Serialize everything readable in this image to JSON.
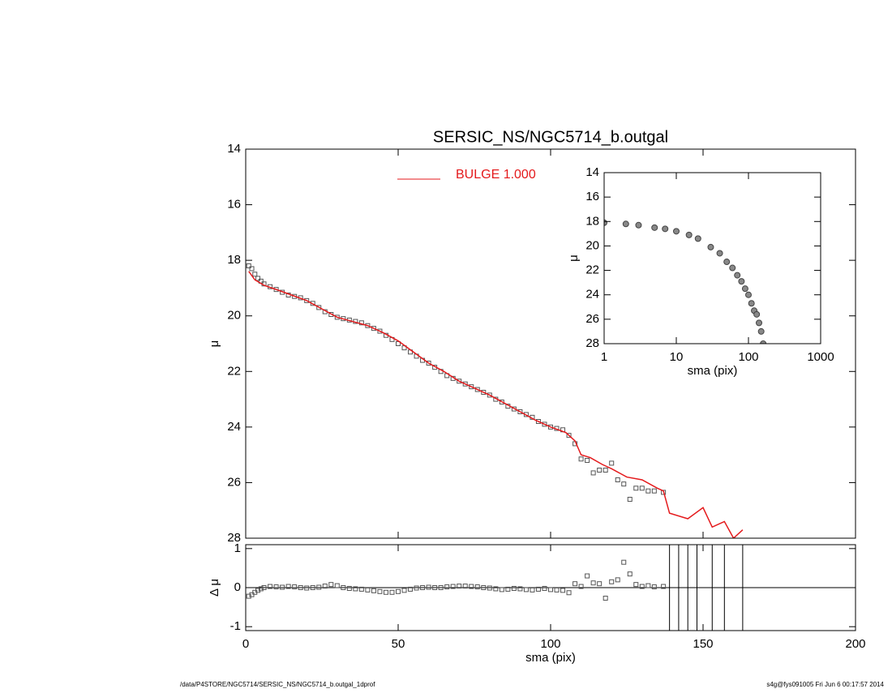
{
  "chart_data": [
    {
      "type": "scatter",
      "title": "SERSIC_NS/NGC5714_b.outgal",
      "ylabel": "μ",
      "xlim": [
        0,
        200
      ],
      "ylim": [
        28,
        14
      ],
      "yticks": [
        14,
        16,
        18,
        20,
        22,
        24,
        26,
        28
      ],
      "points": {
        "color": "#555555",
        "x": [
          1,
          2,
          3,
          4,
          5,
          6,
          8,
          10,
          12,
          14,
          16,
          18,
          20,
          22,
          24,
          26,
          28,
          30,
          32,
          34,
          36,
          38,
          40,
          42,
          44,
          46,
          48,
          50,
          52,
          54,
          56,
          58,
          60,
          62,
          64,
          66,
          68,
          70,
          72,
          74,
          76,
          78,
          80,
          82,
          84,
          86,
          88,
          90,
          92,
          94,
          96,
          98,
          100,
          102,
          104,
          106,
          108,
          110,
          112,
          114,
          116,
          118,
          120,
          122,
          124,
          126,
          128,
          130,
          132,
          134,
          137
        ],
        "values": [
          18.2,
          18.3,
          18.5,
          18.65,
          18.75,
          18.85,
          18.95,
          19.05,
          19.15,
          19.25,
          19.3,
          19.35,
          19.45,
          19.55,
          19.7,
          19.85,
          19.95,
          20.05,
          20.1,
          20.15,
          20.2,
          20.25,
          20.35,
          20.45,
          20.55,
          20.7,
          20.85,
          21.0,
          21.15,
          21.3,
          21.45,
          21.6,
          21.7,
          21.85,
          22.0,
          22.15,
          22.25,
          22.35,
          22.45,
          22.55,
          22.65,
          22.75,
          22.85,
          23.0,
          23.1,
          23.25,
          23.35,
          23.45,
          23.55,
          23.65,
          23.8,
          23.9,
          24.0,
          24.05,
          24.1,
          24.3,
          24.6,
          25.15,
          25.2,
          25.65,
          25.55,
          25.55,
          25.3,
          25.9,
          26.05,
          26.6,
          26.2,
          26.2,
          26.3,
          26.3,
          26.35
        ]
      },
      "series": [
        {
          "name": "BULGE  1.000",
          "color": "#e41a1c",
          "x": [
            1,
            3,
            6,
            10,
            15,
            20,
            25,
            30,
            35,
            40,
            45,
            50,
            55,
            60,
            65,
            70,
            75,
            80,
            85,
            90,
            95,
            100,
            105,
            108,
            110,
            113,
            117,
            120,
            125,
            130,
            135,
            137,
            139,
            145,
            150,
            153,
            157,
            160,
            163
          ],
          "values": [
            18.4,
            18.7,
            18.9,
            19.05,
            19.25,
            19.45,
            19.75,
            20.05,
            20.2,
            20.35,
            20.6,
            20.9,
            21.3,
            21.7,
            22.0,
            22.35,
            22.6,
            22.85,
            23.15,
            23.45,
            23.75,
            24.0,
            24.2,
            24.5,
            25.0,
            25.1,
            25.35,
            25.5,
            25.8,
            25.9,
            26.2,
            26.3,
            27.1,
            27.3,
            26.9,
            27.6,
            27.4,
            28.0,
            27.7
          ]
        }
      ]
    },
    {
      "type": "residual",
      "ylabel": "Δ μ",
      "xlabel": "sma (pix)",
      "xlim": [
        0,
        200
      ],
      "xticks": [
        0,
        50,
        100,
        150,
        200
      ],
      "ylim": [
        -1.1,
        1.1
      ],
      "yticks": [
        -1,
        0,
        1
      ],
      "x": [
        1,
        2,
        3,
        4,
        5,
        6,
        8,
        10,
        12,
        14,
        16,
        18,
        20,
        22,
        24,
        26,
        28,
        30,
        32,
        34,
        36,
        38,
        40,
        42,
        44,
        46,
        48,
        50,
        52,
        54,
        56,
        58,
        60,
        62,
        64,
        66,
        68,
        70,
        72,
        74,
        76,
        78,
        80,
        82,
        84,
        86,
        88,
        90,
        92,
        94,
        96,
        98,
        100,
        102,
        104,
        106,
        108,
        110,
        112,
        114,
        116,
        118,
        120,
        122,
        124,
        126,
        128,
        130,
        132,
        134,
        137
      ],
      "values": [
        -0.22,
        -0.18,
        -0.12,
        -0.07,
        -0.03,
        0.0,
        0.03,
        0.02,
        0.01,
        0.03,
        0.02,
        0.0,
        -0.01,
        0.0,
        0.01,
        0.04,
        0.08,
        0.05,
        0.0,
        -0.02,
        -0.03,
        -0.04,
        -0.06,
        -0.08,
        -0.1,
        -0.12,
        -0.12,
        -0.1,
        -0.07,
        -0.04,
        -0.01,
        0.0,
        0.01,
        0.0,
        0.0,
        0.02,
        0.03,
        0.04,
        0.04,
        0.03,
        0.02,
        0.0,
        -0.01,
        -0.03,
        -0.05,
        -0.04,
        -0.02,
        -0.03,
        -0.05,
        -0.06,
        -0.04,
        -0.02,
        -0.05,
        -0.06,
        -0.07,
        -0.13,
        0.1,
        0.03,
        0.3,
        0.12,
        0.1,
        -0.27,
        0.15,
        0.2,
        0.65,
        0.35,
        0.08,
        0.03,
        0.05,
        0.02,
        0.03
      ],
      "error_lines_x": [
        139,
        142,
        145,
        148,
        153,
        157,
        163
      ]
    },
    {
      "type": "logscatter",
      "xlabel": "sma (pix)",
      "ylabel": "μ",
      "xlim": [
        1,
        1000
      ],
      "xticks": [
        1,
        10,
        100,
        1000
      ],
      "ylim": [
        28,
        14
      ],
      "yticks": [
        14,
        16,
        18,
        20,
        22,
        24,
        26,
        28
      ],
      "log_x": true,
      "x": [
        1,
        2,
        3,
        5,
        7,
        10,
        15,
        20,
        30,
        40,
        50,
        60,
        70,
        80,
        90,
        100,
        110,
        120,
        130,
        140,
        150,
        160
      ],
      "values": [
        18.1,
        18.2,
        18.3,
        18.5,
        18.6,
        18.8,
        19.1,
        19.4,
        20.1,
        20.6,
        21.3,
        21.8,
        22.4,
        22.9,
        23.5,
        24.0,
        24.7,
        25.3,
        25.6,
        26.3,
        27,
        28
      ]
    }
  ],
  "footer": {
    "left": "/data/P4STORE/NGC5714/SERSIC_NS/NGC5714_b.outgal_1dprof",
    "right": "s4g@fys091005  Fri Jun  6 00:17:57 2014"
  }
}
